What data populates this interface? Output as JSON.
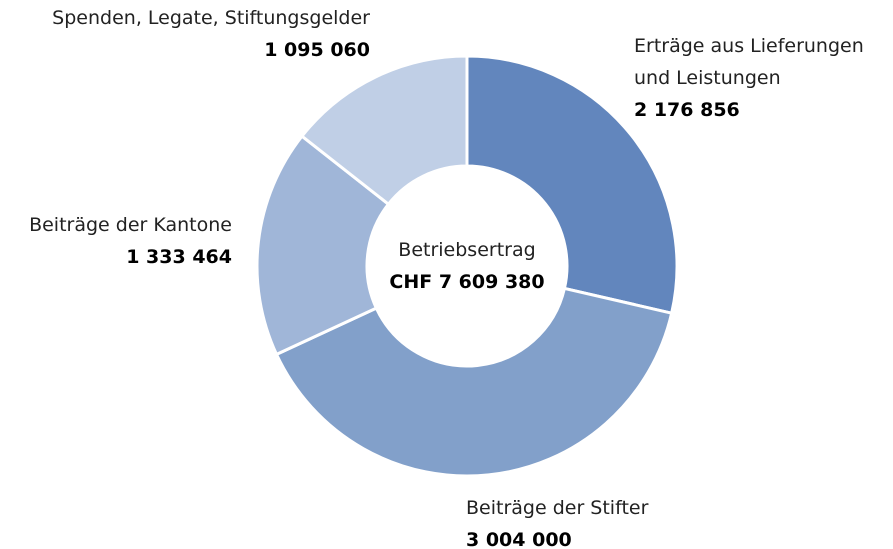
{
  "chart_data": {
    "type": "donut",
    "categories": [
      "Erträge aus Lieferungen und Leistungen",
      "Beiträge der Stifter",
      "Beiträge der Kantone",
      "Spenden, Legate, Stiftungsgelder"
    ],
    "values": [
      2176856,
      3004000,
      1333464,
      1095060
    ],
    "value_labels": [
      "2 176 856",
      "3 004 000",
      "1 333 464",
      "1 095 060"
    ],
    "colors": [
      "#6286bd",
      "#82a0ca",
      "#a0b6d8",
      "#c0cfe6"
    ],
    "center_title": "Betriebsertrag",
    "center_value": "CHF 7 609 380"
  }
}
